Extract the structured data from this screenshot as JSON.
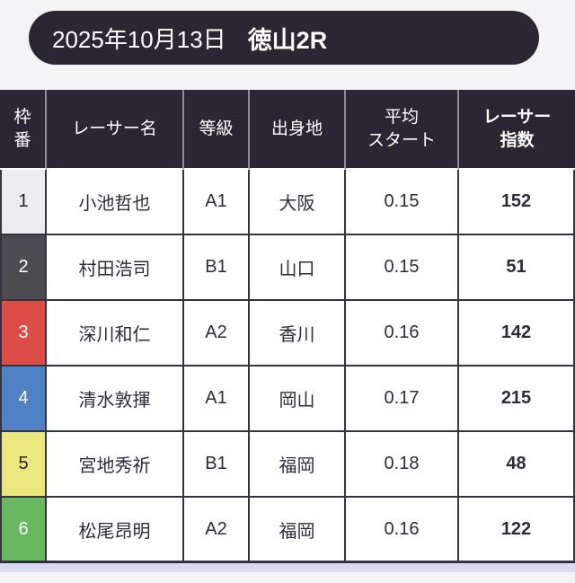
{
  "header": {
    "date": "2025年10月13日",
    "race": "徳山2R"
  },
  "table": {
    "columns": [
      {
        "label": "枠\n番"
      },
      {
        "label": "レーサー名"
      },
      {
        "label": "等級"
      },
      {
        "label": "出身地"
      },
      {
        "label": "平均\nスタート"
      },
      {
        "label": "レーサー\n指数"
      }
    ],
    "rows": [
      {
        "frame": "1",
        "frame_bg": "#ededef",
        "frame_fg": "#222230",
        "name": "小池哲也",
        "grade": "A1",
        "origin": "大阪",
        "avg_start": "0.15",
        "index": "152"
      },
      {
        "frame": "2",
        "frame_bg": "#4c4b4f",
        "frame_fg": "#ffffff",
        "name": "村田浩司",
        "grade": "B1",
        "origin": "山口",
        "avg_start": "0.15",
        "index": "51"
      },
      {
        "frame": "3",
        "frame_bg": "#db4d46",
        "frame_fg": "#ffffff",
        "name": "深川和仁",
        "grade": "A2",
        "origin": "香川",
        "avg_start": "0.16",
        "index": "142"
      },
      {
        "frame": "4",
        "frame_bg": "#4f81c4",
        "frame_fg": "#ffffff",
        "name": "清水敦揮",
        "grade": "A1",
        "origin": "岡山",
        "avg_start": "0.17",
        "index": "215"
      },
      {
        "frame": "5",
        "frame_bg": "#e9e77e",
        "frame_fg": "#222230",
        "name": "宮地秀祈",
        "grade": "B1",
        "origin": "福岡",
        "avg_start": "0.18",
        "index": "48"
      },
      {
        "frame": "6",
        "frame_bg": "#68b761",
        "frame_fg": "#ffffff",
        "name": "松尾昂明",
        "grade": "A2",
        "origin": "福岡",
        "avg_start": "0.16",
        "index": "122"
      }
    ]
  },
  "colors": {
    "page_bg": "#f4f4f7",
    "pill_bg": "#2a2732",
    "table_header_bg": "#2a2732",
    "header_divider": "#8f8e98",
    "cell_border": "#35333e",
    "bottom_strip": "#d9d9ef"
  }
}
